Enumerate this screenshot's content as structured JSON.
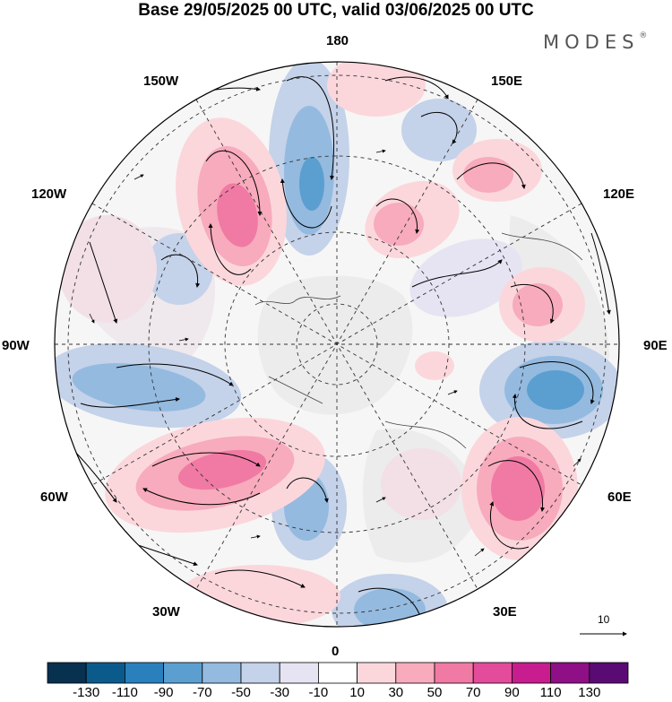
{
  "title": "Base 29/05/2025 00 UTC, valid 03/06/2025 00 UTC",
  "brand": "MODES",
  "brand_mark": "®",
  "longitude_labels": {
    "top": "180",
    "bottom": "0",
    "left": "90W",
    "right": "90E",
    "upper_left_1": "150W",
    "upper_left_2": "120W",
    "lower_left_1": "60W",
    "lower_left_2": "30W",
    "upper_right_1": "150E",
    "upper_right_2": "120E",
    "lower_right_1": "60E",
    "lower_right_2": "30E"
  },
  "reference_vector": {
    "value": "10",
    "icon": "arrow-right-icon"
  },
  "colorbar": {
    "colors": [
      "#08304f",
      "#0b5a8c",
      "#2a7fbd",
      "#5b9fd0",
      "#94badf",
      "#c4d2ea",
      "#e6e4f2",
      "#ffffff",
      "#fbd7dc",
      "#f7abbc",
      "#f07aa3",
      "#e34c9a",
      "#c81d8e",
      "#8f0f86",
      "#5a0a73"
    ],
    "ticks": [
      "-130",
      "-110",
      "-90",
      "-70",
      "-50",
      "-30",
      "-10",
      "10",
      "30",
      "50",
      "70",
      "90",
      "110",
      "130"
    ]
  },
  "map_colors": {
    "strong_pos": "#d9439b",
    "mid_pos": "#f07aa3",
    "weak_pos": "#fbd7dc",
    "faint_pos": "#f2e0e6",
    "strong_neg": "#4f93c9",
    "mid_neg": "#94badf",
    "weak_neg": "#c4d2ea",
    "faint_neg": "#e6e4f2",
    "land": "#ececec"
  }
}
